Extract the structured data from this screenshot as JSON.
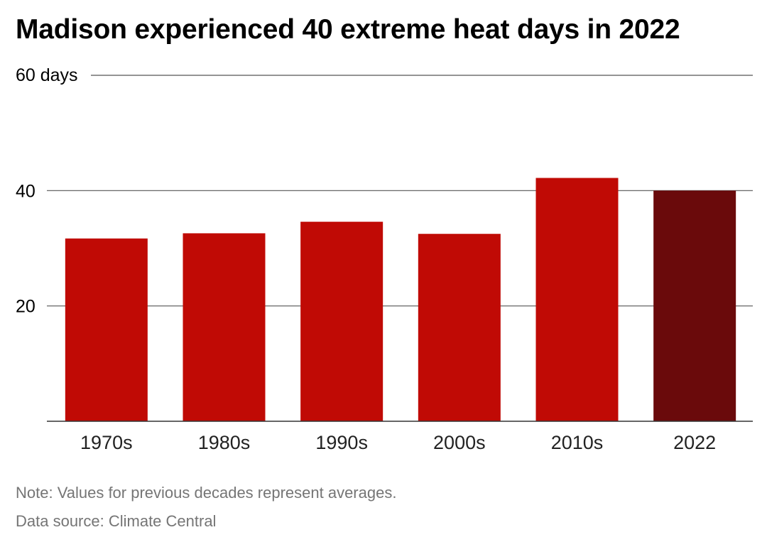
{
  "title": "Madison experienced 40 extreme heat days in 2022",
  "note": "Note: Values for previous decades represent averages.",
  "source": "Data source: Climate Central",
  "colors": {
    "bar": "#c00a05",
    "highlight": "#6a0a0b",
    "grid": "#555555",
    "axis": "#333333",
    "text": "#000000"
  },
  "chart_data": {
    "type": "bar",
    "categories": [
      "1970s",
      "1980s",
      "1990s",
      "2000s",
      "2010s",
      "2022"
    ],
    "values": [
      31.7,
      32.6,
      34.6,
      32.5,
      42.2,
      40
    ],
    "highlight_index": 5,
    "ylim": [
      0,
      60
    ],
    "yticks": [
      20,
      40,
      60
    ],
    "ytick_labels": [
      "20",
      "40",
      "60 days"
    ],
    "grid": true,
    "legend": "none"
  }
}
